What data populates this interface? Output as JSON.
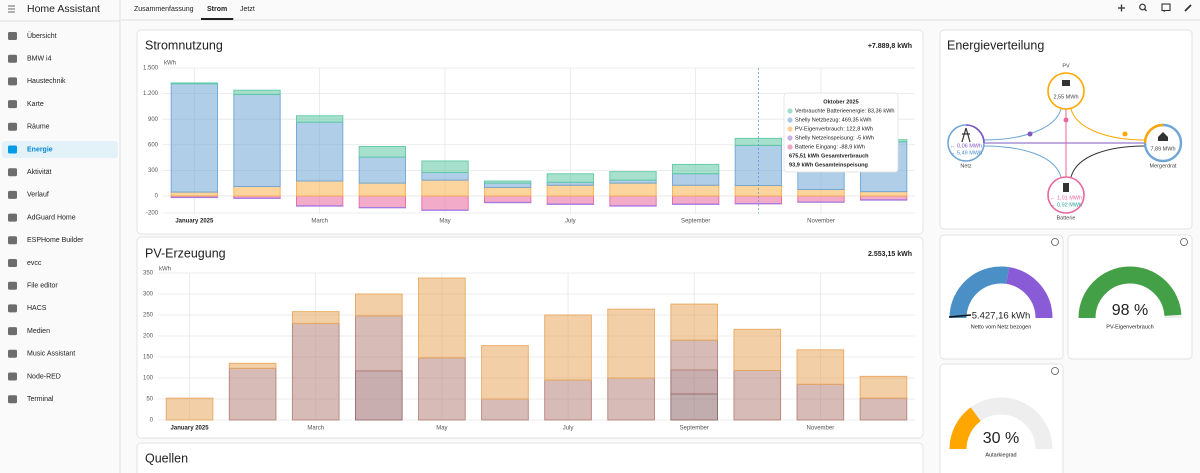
{
  "sidebar": {
    "title": "Home Assistant",
    "items": [
      "Übersicht",
      "BMW i4",
      "Haustechnik",
      "Karte",
      "Räume",
      "Energie",
      "Aktivität",
      "Verlauf",
      "AdGuard Home",
      "ESPHome Builder",
      "evcc",
      "File editor",
      "HACS",
      "Medien",
      "Music Assistant",
      "Node-RED",
      "Terminal"
    ],
    "active": 5
  },
  "tabs": {
    "items": [
      "Zusammenfassung",
      "Strom",
      "Jetzt"
    ],
    "active": 1
  },
  "chart_data": [
    {
      "type": "stacked-bar",
      "title": "Stromnutzung",
      "total": "+7.889,8 kWh",
      "y_unit": "kWh",
      "categories": [
        "January 2025",
        null,
        "March",
        null,
        "May",
        null,
        "July",
        null,
        "September",
        null,
        "November",
        null
      ],
      "series": [
        {
          "color": "#5fc9a4",
          "values": [
            10,
            50,
            75,
            125,
            135,
            25,
            100,
            100,
            110,
            83.36,
            85,
            25
          ]
        },
        {
          "color": "#6fa6d6",
          "values": [
            1270,
            1080,
            690,
            305,
            90,
            50,
            35,
            35,
            135,
            469.35,
            485,
            585
          ]
        },
        {
          "color": "#f7b04f",
          "values": [
            45,
            110,
            175,
            150,
            185,
            100,
            125,
            150,
            125,
            122.8,
            75,
            50
          ]
        },
        {
          "color": "#a57be0",
          "values": [
            -5,
            -5,
            -5,
            -5,
            -5,
            -5,
            -5,
            -5,
            -5,
            -5,
            -5,
            -5
          ]
        },
        {
          "color": "#e8679f",
          "values": [
            -15,
            -25,
            -115,
            -135,
            -165,
            -75,
            -95,
            -115,
            -95,
            -88.9,
            -70,
            -45
          ]
        }
      ],
      "ylim": [
        -200,
        1500
      ],
      "yticks": [
        -200,
        0,
        300,
        600,
        900,
        {
          "value": 1200,
          "label": "1.200"
        },
        {
          "value": 1500,
          "label": "1.500"
        }
      ],
      "grid": true,
      "tooltip": {
        "title": "Oktober 2025",
        "rows": [
          "Verbrauchte Batterieenergie: 83,36 kWh",
          "Shelly Netzbezug: 469,35 kWh",
          "PV-Eigenverbrauch: 122,8 kWh",
          "Shelly Netzeinspeisung: -5 kWh",
          "Batterie Eingang: -88,9 kWh"
        ],
        "totals": [
          "675,51 kWh Gesamtverbrauch",
          "93,9 kWh Gesamteinspeisung"
        ]
      }
    },
    {
      "type": "stacked-bar",
      "title": "PV-Erzeugung",
      "total": "2.553,15 kWh",
      "y_unit": "kWh",
      "categories": [
        "January 2025",
        null,
        "March",
        null,
        "May",
        null,
        "July",
        null,
        "September",
        null,
        "November",
        null
      ],
      "series": [
        {
          "color": "#e9a85e",
          "values": [
            52,
            12,
            28,
            52,
            190,
            127,
            155,
            164,
            86,
            98,
            82,
            52
          ]
        },
        {
          "color": "#b7847a",
          "values": [
            0,
            123,
            230,
            131,
            148,
            50,
            95,
            100,
            71,
            118,
            85,
            52
          ]
        },
        {
          "color": "#9a6c6e",
          "values": [
            0,
            0,
            0,
            117,
            0,
            0,
            0,
            0,
            57,
            0,
            0,
            0
          ]
        },
        {
          "color": "#8e6a6a",
          "values": [
            0,
            0,
            0,
            0,
            0,
            0,
            0,
            0,
            62,
            0,
            0,
            0
          ]
        }
      ],
      "ylim": [
        0,
        350
      ],
      "yticks": [
        0,
        50,
        100,
        150,
        200,
        250,
        300,
        350
      ],
      "grid": true
    }
  ],
  "sources": {
    "title": "Quellen"
  },
  "energy_flow": {
    "title": "Energieverteilung",
    "pv": {
      "label": "PV",
      "value": "2,55 MWh"
    },
    "grid": {
      "label": "Netz",
      "export": "← 0,06 MWh",
      "import": "→ 5,49 MWh"
    },
    "home": {
      "label": "Mergerdrat",
      "value": "7,89 MWh"
    },
    "battery": {
      "label": "Batterie",
      "in": "← 1,01 MWh",
      "out": "→ 0,92 MWh"
    }
  },
  "gauges": [
    {
      "value_label": "5.427,16 kWh",
      "name": "Netto vom Netz bezogen"
    },
    {
      "value": 98,
      "value_label": "98 %",
      "name": "PV-Eigenverbrauch",
      "color": "#43a047"
    },
    {
      "value": 30,
      "value_label": "30 %",
      "name": "Autarkiegrad",
      "color": "#ffa600"
    }
  ]
}
